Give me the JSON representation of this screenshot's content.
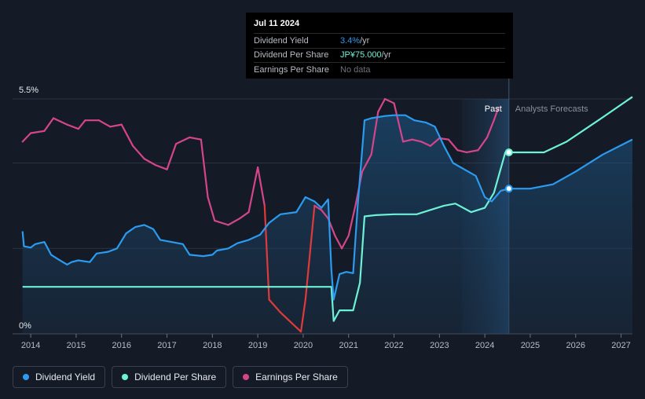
{
  "tooltip": {
    "date": "Jul 11 2024",
    "rows": [
      {
        "label": "Dividend Yield",
        "value": "3.4%",
        "unit": " /yr"
      },
      {
        "label": "Dividend Per Share",
        "value": "JP¥75.000",
        "unit": " /yr"
      },
      {
        "label": "Earnings Per Share",
        "value": "No data",
        "unit": ""
      }
    ]
  },
  "legend": [
    {
      "label": "Dividend Yield",
      "color": "#2b9bf0"
    },
    {
      "label": "Dividend Per Share",
      "color": "#6ef2d6"
    },
    {
      "label": "Earnings Per Share",
      "color": "#d4458a"
    }
  ],
  "chart_data": {
    "type": "line",
    "y_top_label": "5.5%",
    "y_bottom_label": "0%",
    "ylim": [
      0,
      5.5
    ],
    "xlim": [
      2013.6,
      2027.25
    ],
    "x_ticks": [
      "2014",
      "2015",
      "2016",
      "2017",
      "2018",
      "2019",
      "2020",
      "2021",
      "2022",
      "2023",
      "2024",
      "2025",
      "2026",
      "2027"
    ],
    "past_label": "Past",
    "forecast_label": "Analysts Forecasts",
    "forecast_band": [
      2023.5,
      2024.53
    ],
    "current_x": 2024.53,
    "grid": true,
    "series": [
      {
        "name": "Dividend Yield",
        "color": "#2b9bf0",
        "area": true,
        "points": [
          [
            2013.82,
            2.4
          ],
          [
            2013.85,
            2.05
          ],
          [
            2014.0,
            2.02
          ],
          [
            2014.1,
            2.1
          ],
          [
            2014.3,
            2.15
          ],
          [
            2014.45,
            1.85
          ],
          [
            2014.6,
            1.75
          ],
          [
            2014.8,
            1.62
          ],
          [
            2014.9,
            1.68
          ],
          [
            2015.05,
            1.72
          ],
          [
            2015.3,
            1.68
          ],
          [
            2015.45,
            1.88
          ],
          [
            2015.7,
            1.92
          ],
          [
            2015.9,
            2.0
          ],
          [
            2016.1,
            2.35
          ],
          [
            2016.3,
            2.5
          ],
          [
            2016.5,
            2.55
          ],
          [
            2016.7,
            2.45
          ],
          [
            2016.85,
            2.2
          ],
          [
            2017.1,
            2.15
          ],
          [
            2017.35,
            2.1
          ],
          [
            2017.5,
            1.85
          ],
          [
            2017.8,
            1.82
          ],
          [
            2018.0,
            1.85
          ],
          [
            2018.1,
            1.95
          ],
          [
            2018.35,
            2.0
          ],
          [
            2018.55,
            2.12
          ],
          [
            2018.8,
            2.2
          ],
          [
            2019.05,
            2.32
          ],
          [
            2019.25,
            2.6
          ],
          [
            2019.5,
            2.8
          ],
          [
            2019.85,
            2.85
          ],
          [
            2020.05,
            3.2
          ],
          [
            2020.25,
            3.1
          ],
          [
            2020.4,
            2.95
          ],
          [
            2020.55,
            3.15
          ],
          [
            2020.62,
            1.5
          ],
          [
            2020.67,
            0.8
          ],
          [
            2020.8,
            1.4
          ],
          [
            2020.95,
            1.45
          ],
          [
            2021.1,
            1.42
          ],
          [
            2021.2,
            3.0
          ],
          [
            2021.35,
            5.0
          ],
          [
            2021.5,
            5.05
          ],
          [
            2021.8,
            5.1
          ],
          [
            2022.0,
            5.12
          ],
          [
            2022.25,
            5.12
          ],
          [
            2022.45,
            5.0
          ],
          [
            2022.7,
            4.95
          ],
          [
            2022.9,
            4.85
          ],
          [
            2023.1,
            4.4
          ],
          [
            2023.3,
            4.0
          ],
          [
            2023.55,
            3.85
          ],
          [
            2023.8,
            3.7
          ],
          [
            2024.0,
            3.2
          ],
          [
            2024.15,
            3.1
          ],
          [
            2024.35,
            3.35
          ],
          [
            2024.53,
            3.4
          ],
          [
            2025.0,
            3.4
          ],
          [
            2025.5,
            3.5
          ],
          [
            2026.0,
            3.8
          ],
          [
            2026.6,
            4.2
          ],
          [
            2027.25,
            4.55
          ]
        ]
      },
      {
        "name": "Dividend Per Share",
        "color": "#6ef2d6",
        "area": false,
        "points": [
          [
            2013.82,
            1.1
          ],
          [
            2020.62,
            1.1
          ],
          [
            2020.67,
            0.3
          ],
          [
            2020.8,
            0.55
          ],
          [
            2021.1,
            0.55
          ],
          [
            2021.25,
            1.2
          ],
          [
            2021.35,
            2.75
          ],
          [
            2021.6,
            2.78
          ],
          [
            2022.0,
            2.8
          ],
          [
            2022.5,
            2.8
          ],
          [
            2022.8,
            2.9
          ],
          [
            2023.1,
            3.0
          ],
          [
            2023.35,
            3.05
          ],
          [
            2023.7,
            2.85
          ],
          [
            2024.0,
            2.95
          ],
          [
            2024.2,
            3.3
          ],
          [
            2024.45,
            4.25
          ],
          [
            2024.53,
            4.25
          ],
          [
            2025.3,
            4.25
          ],
          [
            2025.8,
            4.5
          ],
          [
            2026.5,
            5.0
          ],
          [
            2027.25,
            5.55
          ]
        ]
      },
      {
        "name": "Earnings Per Share",
        "color": "#d4458a",
        "area": false,
        "points": [
          [
            2013.82,
            4.5
          ],
          [
            2014.0,
            4.7
          ],
          [
            2014.3,
            4.75
          ],
          [
            2014.5,
            5.05
          ],
          [
            2014.8,
            4.9
          ],
          [
            2015.05,
            4.8
          ],
          [
            2015.2,
            5.0
          ],
          [
            2015.5,
            5.0
          ],
          [
            2015.75,
            4.85
          ],
          [
            2016.0,
            4.9
          ],
          [
            2016.25,
            4.4
          ],
          [
            2016.5,
            4.1
          ],
          [
            2016.75,
            3.95
          ],
          [
            2017.0,
            3.85
          ],
          [
            2017.2,
            4.45
          ],
          [
            2017.5,
            4.6
          ],
          [
            2017.75,
            4.55
          ],
          [
            2017.9,
            3.2
          ],
          [
            2018.05,
            2.65
          ],
          [
            2018.35,
            2.55
          ],
          [
            2018.6,
            2.7
          ],
          [
            2018.8,
            2.85
          ],
          [
            2019.0,
            3.9
          ],
          [
            2019.15,
            3.0
          ],
          [
            2019.25,
            0.8
          ],
          [
            2019.5,
            0.5
          ],
          [
            2019.75,
            0.25
          ],
          [
            2019.95,
            0.05
          ],
          [
            2020.05,
            0.8
          ],
          [
            2020.25,
            3.0
          ],
          [
            2020.4,
            2.9
          ],
          [
            2020.55,
            2.7
          ],
          [
            2020.7,
            2.3
          ],
          [
            2020.85,
            2.0
          ],
          [
            2021.0,
            2.3
          ],
          [
            2021.15,
            3.0
          ],
          [
            2021.3,
            3.8
          ],
          [
            2021.5,
            4.2
          ],
          [
            2021.65,
            5.2
          ],
          [
            2021.8,
            5.5
          ],
          [
            2022.0,
            5.4
          ],
          [
            2022.2,
            4.5
          ],
          [
            2022.4,
            4.55
          ],
          [
            2022.6,
            4.5
          ],
          [
            2022.8,
            4.4
          ],
          [
            2023.0,
            4.58
          ],
          [
            2023.2,
            4.55
          ],
          [
            2023.4,
            4.3
          ],
          [
            2023.6,
            4.25
          ],
          [
            2023.85,
            4.3
          ],
          [
            2024.05,
            4.6
          ],
          [
            2024.2,
            5.0
          ],
          [
            2024.3,
            5.3
          ]
        ]
      }
    ],
    "markers": [
      {
        "series": "Dividend Per Share",
        "x": 2024.53,
        "y": 4.25
      },
      {
        "series": "Dividend Yield",
        "x": 2024.53,
        "y": 3.4
      }
    ]
  }
}
